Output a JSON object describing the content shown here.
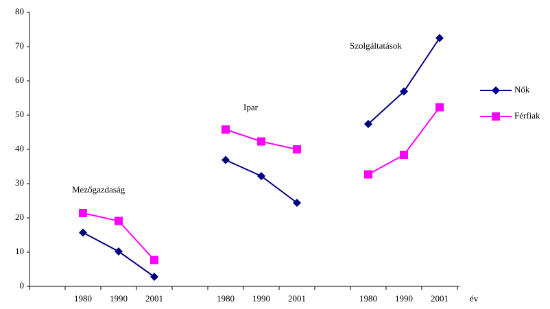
{
  "chart_data": {
    "type": "line",
    "categories": [
      null,
      "1980",
      "1990",
      "2001",
      null,
      "1980",
      "1990",
      "2001",
      null,
      "1980",
      "1990",
      "2001"
    ],
    "series": [
      {
        "name": "Nők",
        "color": "#000080",
        "marker": "diamond",
        "values": [
          null,
          15.7,
          10.2,
          2.8,
          null,
          36.9,
          32.2,
          24.4,
          null,
          47.4,
          56.9,
          72.5
        ]
      },
      {
        "name": "Férfiak",
        "color": "#ff00ff",
        "marker": "square",
        "values": [
          null,
          21.4,
          19.1,
          7.7,
          null,
          45.8,
          42.3,
          40,
          null,
          32.7,
          38.4,
          52.3
        ]
      }
    ],
    "x_label": "év",
    "annotations": [
      "Mezőgazdaság",
      "Ipar",
      "Szolgáltatások"
    ],
    "ylim": [
      0,
      80
    ],
    "yticks": [
      0,
      10,
      20,
      30,
      40,
      50,
      60,
      70,
      80
    ],
    "grid": false,
    "legend": "right"
  }
}
